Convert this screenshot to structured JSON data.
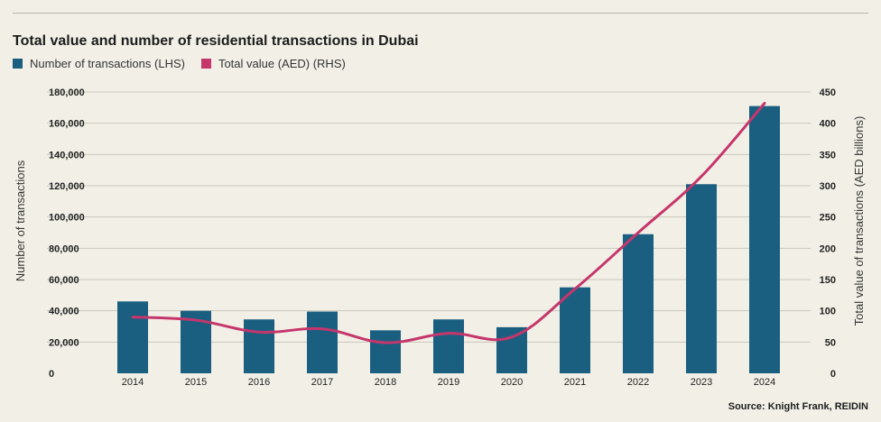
{
  "chart_data": {
    "type": "bar",
    "title": "Total value and number of residential transactions in Dubai",
    "categories": [
      "2014",
      "2015",
      "2016",
      "2017",
      "2018",
      "2019",
      "2020",
      "2021",
      "2022",
      "2023",
      "2024"
    ],
    "series": [
      {
        "name": "Number of transactions (LHS)",
        "type": "bar",
        "axis": "left",
        "color": "#1b5f80",
        "values": [
          46000,
          40000,
          34500,
          39500,
          27500,
          34500,
          29500,
          55000,
          89000,
          121000,
          171000
        ]
      },
      {
        "name": "Total value (AED) (RHS)",
        "type": "line",
        "axis": "right",
        "color": "#c5366c",
        "values": [
          90,
          85,
          66,
          71,
          49,
          64,
          58,
          135,
          225,
          315,
          432
        ]
      }
    ],
    "ylabel": "Number of transactions",
    "y2label": "Total value of transactions (AED billions)",
    "yticks": [
      "0",
      "20,000",
      "40,000",
      "60,000",
      "80,000",
      "100,000",
      "120,000",
      "140,000",
      "160,000",
      "180,000"
    ],
    "y2ticks": [
      "0",
      "50",
      "100",
      "150",
      "200",
      "250",
      "300",
      "350",
      "400",
      "450"
    ],
    "ylim": [
      0,
      180000
    ],
    "y2lim": [
      0,
      450
    ],
    "grid": true,
    "legend_position": "top-left"
  },
  "source": "Source: Knight Frank, REIDIN"
}
